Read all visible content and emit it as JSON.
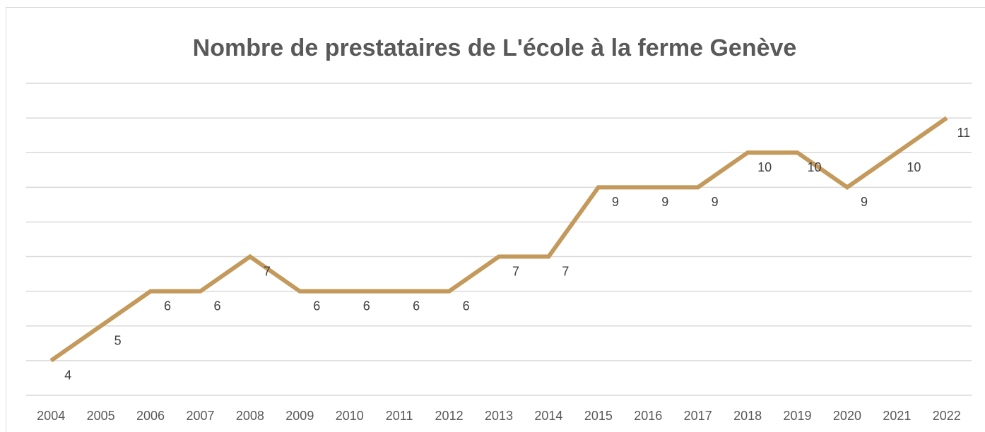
{
  "chart_data": {
    "type": "line",
    "title": "Nombre de prestataires de L'école à la ferme Genève",
    "categories": [
      "2004",
      "2005",
      "2006",
      "2007",
      "2008",
      "2009",
      "2010",
      "2011",
      "2012",
      "2013",
      "2014",
      "2015",
      "2016",
      "2017",
      "2018",
      "2019",
      "2020",
      "2021",
      "2022"
    ],
    "values": [
      4,
      5,
      6,
      6,
      7,
      6,
      6,
      6,
      6,
      7,
      7,
      9,
      9,
      9,
      10,
      10,
      9,
      10,
      11
    ],
    "color": "#c49a5c",
    "ylim": [
      3,
      12
    ],
    "yticks": [
      3,
      4,
      5,
      6,
      7,
      8,
      9,
      10,
      11,
      12
    ],
    "grid": true
  }
}
